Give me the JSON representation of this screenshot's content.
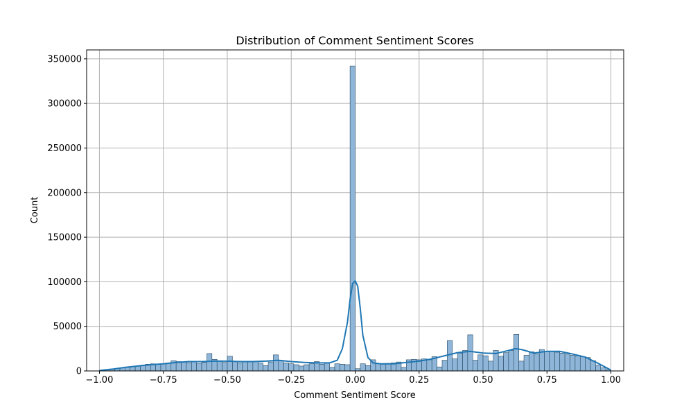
{
  "chart_data": {
    "type": "bar",
    "title": "Distribution of Comment Sentiment Scores",
    "xlabel": "Comment Sentiment Score",
    "ylabel": "Count",
    "xlim": [
      -1.05,
      1.05
    ],
    "ylim": [
      0,
      360000
    ],
    "grid": true,
    "xticks": [
      -1.0,
      -0.75,
      -0.5,
      -0.25,
      0.0,
      0.25,
      0.5,
      0.75,
      1.0
    ],
    "xtick_labels": [
      "−1.00",
      "−0.75",
      "−0.50",
      "−0.25",
      "0.00",
      "0.25",
      "0.50",
      "0.75",
      "1.00"
    ],
    "yticks": [
      0,
      50000,
      100000,
      150000,
      200000,
      250000,
      300000,
      350000
    ],
    "ytick_labels": [
      "0",
      "50000",
      "100000",
      "150000",
      "200000",
      "250000",
      "300000",
      "350000"
    ],
    "bins": {
      "start": -1.0,
      "width": 0.02,
      "counts": [
        500,
        1200,
        2000,
        2800,
        3500,
        4000,
        5000,
        5500,
        6500,
        7500,
        8000,
        7500,
        8000,
        9000,
        11500,
        10500,
        10000,
        9000,
        10000,
        8500,
        9500,
        19500,
        13000,
        11500,
        9500,
        16500,
        10500,
        9000,
        11000,
        10000,
        10500,
        9000,
        6000,
        10000,
        18000,
        11500,
        9000,
        8000,
        7000,
        5500,
        7000,
        8000,
        10500,
        7500,
        9500,
        4000,
        8000,
        7500,
        7000,
        342000,
        2500,
        8000,
        6000,
        12500,
        8000,
        7500,
        8500,
        9000,
        10000,
        4000,
        12500,
        13000,
        12500,
        13500,
        12500,
        16000,
        4500,
        12000,
        34000,
        13500,
        20000,
        23000,
        40500,
        12000,
        18000,
        17000,
        11000,
        23000,
        16500,
        20500,
        23000,
        41000,
        11000,
        17500,
        21500,
        19000,
        24000,
        22000,
        22000,
        21000,
        20000,
        19000,
        17500,
        17000,
        16000,
        15000,
        11500,
        6500,
        3500,
        1500
      ]
    },
    "kde": {
      "x": [
        -1.0,
        -0.95,
        -0.9,
        -0.85,
        -0.8,
        -0.75,
        -0.7,
        -0.65,
        -0.6,
        -0.55,
        -0.5,
        -0.45,
        -0.4,
        -0.35,
        -0.3,
        -0.25,
        -0.2,
        -0.15,
        -0.1,
        -0.07,
        -0.05,
        -0.03,
        -0.02,
        -0.01,
        0.0,
        0.01,
        0.02,
        0.03,
        0.05,
        0.07,
        0.1,
        0.15,
        0.2,
        0.25,
        0.3,
        0.35,
        0.4,
        0.45,
        0.5,
        0.55,
        0.6,
        0.625,
        0.65,
        0.7,
        0.75,
        0.8,
        0.85,
        0.9,
        0.95,
        1.0
      ],
      "y": [
        500,
        2000,
        4000,
        5500,
        7000,
        8000,
        9500,
        10500,
        10500,
        11000,
        11000,
        10500,
        10500,
        11000,
        12000,
        10500,
        9500,
        9000,
        9000,
        12000,
        25000,
        55000,
        80000,
        98000,
        101000,
        95000,
        70000,
        40000,
        15000,
        9000,
        8000,
        8000,
        9500,
        11000,
        13500,
        17000,
        20500,
        22000,
        20000,
        19500,
        23000,
        25000,
        24000,
        20000,
        22000,
        22000,
        19000,
        15500,
        8500,
        1000
      ]
    },
    "bar_color": "#8fb6d8",
    "bar_edge": "#24455f",
    "line_color": "#1f77b4"
  }
}
